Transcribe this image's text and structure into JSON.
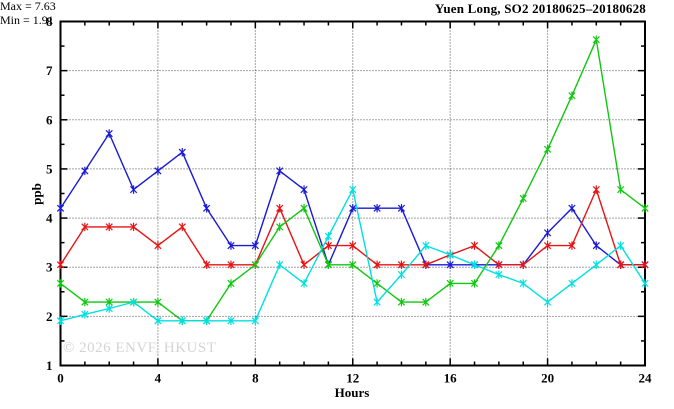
{
  "title": "Yuen Long, SO2 20180625–20180628",
  "annotations": {
    "max_label": "Max = 7.63",
    "min_label": "Min = 1.91"
  },
  "watermark": "© 2026 ENVF, HKUST",
  "axes": {
    "xlabel": "Hours",
    "ylabel": "ppb"
  },
  "colors": {
    "background": "#ffffff",
    "axis": "#000000",
    "grid": "#4a4a4a",
    "watermark": "#d4d4d4",
    "series_blue": "#1a1ad6",
    "series_red": "#e61414",
    "series_green": "#0fc80f",
    "series_cyan": "#00e0e0"
  },
  "chart_data": {
    "type": "line",
    "title": "Yuen Long, SO2 20180625–20180628",
    "xlabel": "Hours",
    "ylabel": "ppb",
    "xlim": [
      0,
      24
    ],
    "ylim": [
      1,
      8
    ],
    "xticks": [
      0,
      4,
      8,
      12,
      16,
      20,
      24
    ],
    "yticks": [
      1,
      2,
      3,
      4,
      5,
      6,
      7,
      8
    ],
    "x_minor_step": 1,
    "y_minor_step": 0.5,
    "grid_x": [
      4,
      8,
      12,
      16,
      20
    ],
    "grid_y": [
      2,
      3,
      4,
      5,
      6,
      7
    ],
    "grid_style": "dotted",
    "legend_position": "none",
    "marker": "asterisk",
    "max_value": 7.63,
    "min_value": 1.91,
    "x": [
      0,
      1,
      2,
      3,
      4,
      5,
      6,
      7,
      8,
      9,
      10,
      11,
      12,
      13,
      14,
      15,
      16,
      17,
      18,
      19,
      20,
      21,
      22,
      23,
      24
    ],
    "series": [
      {
        "name": "series-blue",
        "color": "#1a1ad6",
        "values": [
          4.2,
          4.96,
          5.72,
          4.58,
          4.96,
          5.34,
          4.2,
          3.44,
          3.44,
          4.96,
          4.58,
          3.05,
          4.2,
          4.2,
          4.2,
          3.05,
          3.05,
          3.05,
          3.05,
          3.05,
          3.7,
          4.2,
          3.44,
          3.05,
          3.05
        ]
      },
      {
        "name": "series-red",
        "color": "#e61414",
        "values": [
          3.05,
          3.82,
          3.82,
          3.82,
          3.44,
          3.82,
          3.05,
          3.05,
          3.05,
          4.2,
          3.05,
          3.44,
          3.44,
          3.05,
          3.05,
          3.05,
          3.25,
          3.44,
          3.05,
          3.05,
          3.44,
          3.44,
          4.58,
          3.05,
          3.05
        ]
      },
      {
        "name": "series-green",
        "color": "#0fc80f",
        "values": [
          2.67,
          2.29,
          2.29,
          2.29,
          2.29,
          1.91,
          1.91,
          2.67,
          3.05,
          3.82,
          4.2,
          3.05,
          3.05,
          2.67,
          2.29,
          2.29,
          2.67,
          2.67,
          3.44,
          4.4,
          5.4,
          6.49,
          7.63,
          4.58,
          4.2
        ]
      },
      {
        "name": "series-cyan",
        "color": "#00e0e0",
        "values": [
          1.91,
          2.04,
          2.16,
          2.29,
          1.91,
          1.91,
          1.91,
          1.91,
          1.91,
          3.05,
          2.67,
          3.63,
          4.58,
          2.29,
          2.85,
          3.44,
          3.25,
          3.05,
          2.85,
          2.67,
          2.29,
          2.67,
          3.05,
          3.44,
          2.67
        ]
      }
    ]
  }
}
